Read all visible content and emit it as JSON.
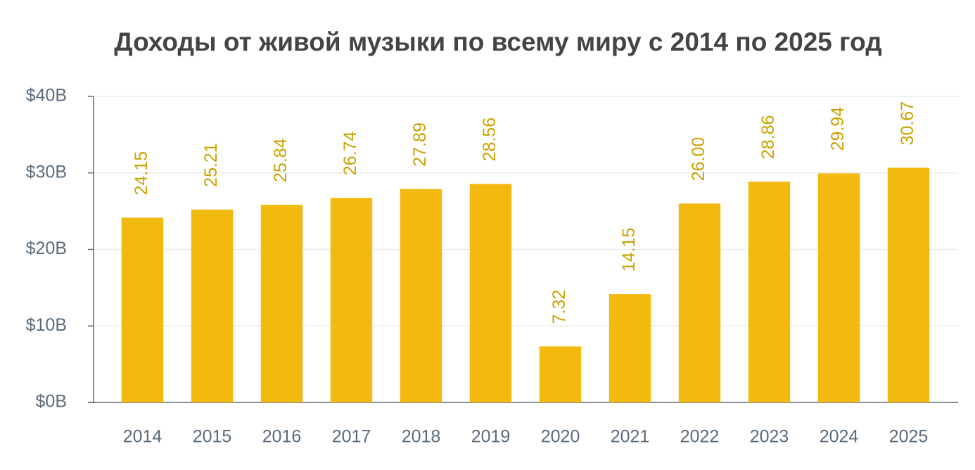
{
  "chart_data": {
    "type": "bar",
    "title": "Доходы от живой музыки по всему миру с 2014 по 2025 год",
    "categories": [
      "2014",
      "2015",
      "2016",
      "2017",
      "2018",
      "2019",
      "2020",
      "2021",
      "2022",
      "2023",
      "2024",
      "2025"
    ],
    "values": [
      24.15,
      25.21,
      25.84,
      26.74,
      27.89,
      28.56,
      7.32,
      14.15,
      26.0,
      28.86,
      29.94,
      30.67
    ],
    "value_labels": [
      "24.15",
      "25.21",
      "25.84",
      "26.74",
      "27.89",
      "28.56",
      "7.32",
      "14.15",
      "26.00",
      "28.86",
      "29.94",
      "30.67"
    ],
    "color": "#f2b90f",
    "label_color": "#c9a200",
    "ylim": [
      0,
      40
    ],
    "yticks": [
      {
        "value": 0,
        "label": "$0B"
      },
      {
        "value": 10,
        "label": "$10B"
      },
      {
        "value": 20,
        "label": "$20B"
      },
      {
        "value": 30,
        "label": "$30B"
      },
      {
        "value": 40,
        "label": "$40B"
      }
    ],
    "grid": true
  }
}
